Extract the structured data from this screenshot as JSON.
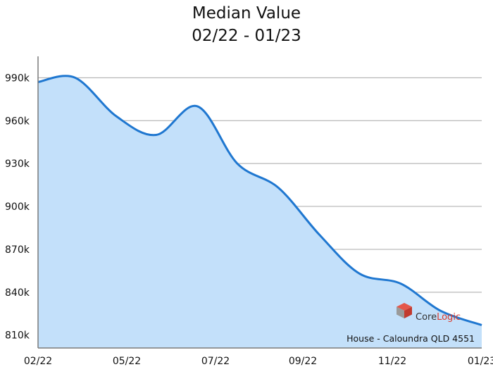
{
  "chart_data": {
    "type": "area",
    "title": "Median Value",
    "subtitle": "02/22 - 01/23",
    "xlabel": "",
    "ylabel": "",
    "x_tick_labels": [
      "02/22",
      "05/22",
      "07/22",
      "09/22",
      "11/22",
      "01/23"
    ],
    "y_tick_labels": [
      "810k",
      "840k",
      "870k",
      "900k",
      "930k",
      "960k",
      "990k"
    ],
    "y_ticks": [
      810000,
      840000,
      870000,
      900000,
      930000,
      960000,
      990000
    ],
    "ylim": [
      801000,
      1002000
    ],
    "grid": true,
    "series": [
      {
        "x": [
          "2022-02-01",
          "2022-03-01",
          "2022-04-01",
          "2022-05-01",
          "2022-06-01",
          "2022-07-01",
          "2022-08-01",
          "2022-09-01",
          "2022-10-01",
          "2022-11-01",
          "2022-12-01",
          "2023-01-01"
        ],
        "values": [
          987000,
          990000,
          963000,
          950000,
          970000,
          930000,
          913000,
          880000,
          853000,
          846000,
          827000,
          817000
        ]
      }
    ],
    "colors": {
      "line": "#1f77d0",
      "fill": "#c3e0fa",
      "grid": "#a8a8a8",
      "axis": "#7a7a7a"
    },
    "watermark": {
      "brand_part1": "Core",
      "brand_part2": "Logic",
      "brand_colors": [
        "#333333",
        "#d83b2e"
      ],
      "caption": "House - Caloundra QLD 4551",
      "logo_icon": "corelogic-cube-icon"
    }
  }
}
